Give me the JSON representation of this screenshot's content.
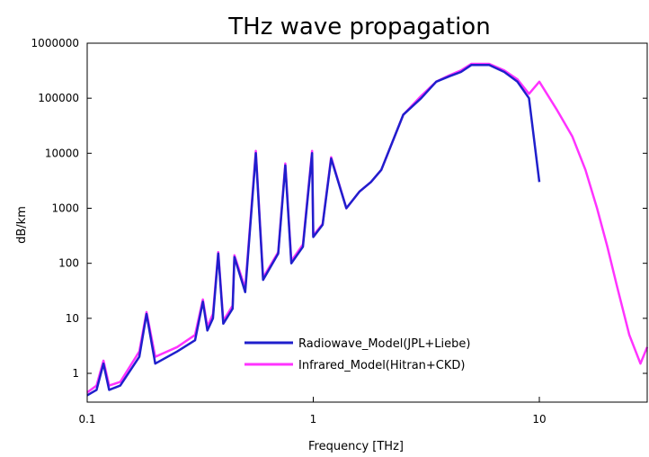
{
  "chart_data": {
    "type": "line",
    "title": "THz wave propagation",
    "xlabel": "Frequency [THz]",
    "ylabel": "dB/km",
    "x_scale": "log",
    "y_scale": "log",
    "xlim": [
      0.1,
      30
    ],
    "ylim": [
      0.3,
      1000000
    ],
    "x_ticks": [
      "0.1",
      "1",
      "10"
    ],
    "y_ticks": [
      "1",
      "10",
      "100",
      "1000",
      "10000",
      "100000",
      "1000000"
    ],
    "grid": false,
    "legend_position": "lower-center",
    "series": [
      {
        "name": "Radiowave_Model(JPL+Liebe)",
        "color": "#1f1fcc",
        "x": [
          0.1,
          0.11,
          0.118,
          0.125,
          0.14,
          0.17,
          0.183,
          0.2,
          0.25,
          0.3,
          0.325,
          0.34,
          0.36,
          0.38,
          0.4,
          0.44,
          0.448,
          0.5,
          0.557,
          0.6,
          0.7,
          0.752,
          0.8,
          0.9,
          0.988,
          1.0,
          1.1,
          1.2,
          1.4,
          1.6,
          1.8,
          2.0,
          2.5,
          3.0,
          3.5,
          4.0,
          4.5,
          5.0,
          6.0,
          7.0,
          8.0,
          9.0,
          10.0
        ],
        "y": [
          0.4,
          0.5,
          1.5,
          0.5,
          0.6,
          2.0,
          12.0,
          1.5,
          2.5,
          4.0,
          20.0,
          6.0,
          10.0,
          150.0,
          8.0,
          15.0,
          130.0,
          30.0,
          10000.0,
          50.0,
          150.0,
          6000.0,
          100.0,
          200.0,
          10000.0,
          300.0,
          500.0,
          8000.0,
          1000.0,
          2000.0,
          3000.0,
          5000.0,
          50000.0,
          100000.0,
          200000.0,
          250000.0,
          300000.0,
          400000.0,
          400000.0,
          300000.0,
          200000.0,
          100000.0,
          3000.0
        ]
      },
      {
        "name": "Infrared_Model(Hitran+CKD)",
        "color": "#ff33ff",
        "x": [
          0.1,
          0.11,
          0.118,
          0.125,
          0.14,
          0.17,
          0.183,
          0.2,
          0.25,
          0.3,
          0.325,
          0.34,
          0.36,
          0.38,
          0.4,
          0.44,
          0.448,
          0.5,
          0.557,
          0.6,
          0.7,
          0.752,
          0.8,
          0.9,
          0.988,
          1.0,
          1.1,
          1.2,
          1.4,
          1.6,
          1.8,
          2.0,
          2.5,
          3.0,
          3.5,
          4.0,
          4.5,
          5.0,
          6.0,
          7.0,
          8.0,
          9.0,
          10.0,
          12.0,
          14.0,
          16.0,
          18.0,
          20.0,
          22.0,
          25.0,
          28.0,
          30.0
        ],
        "y": [
          0.45,
          0.6,
          1.7,
          0.6,
          0.7,
          2.5,
          13.0,
          2.0,
          3.0,
          5.0,
          22.0,
          7.0,
          12.0,
          160.0,
          9.0,
          17.0,
          140.0,
          35.0,
          11000.0,
          55.0,
          160.0,
          6500.0,
          110.0,
          220.0,
          11000.0,
          320.0,
          520.0,
          8500.0,
          1000.0,
          2000.0,
          3000.0,
          5000.0,
          50000.0,
          110000.0,
          200000.0,
          260000.0,
          320000.0,
          420000.0,
          420000.0,
          320000.0,
          220000.0,
          120000.0,
          200000.0,
          60000.0,
          20000.0,
          5000.0,
          1000.0,
          200.0,
          40.0,
          5.0,
          1.5,
          3.0
        ]
      }
    ]
  }
}
